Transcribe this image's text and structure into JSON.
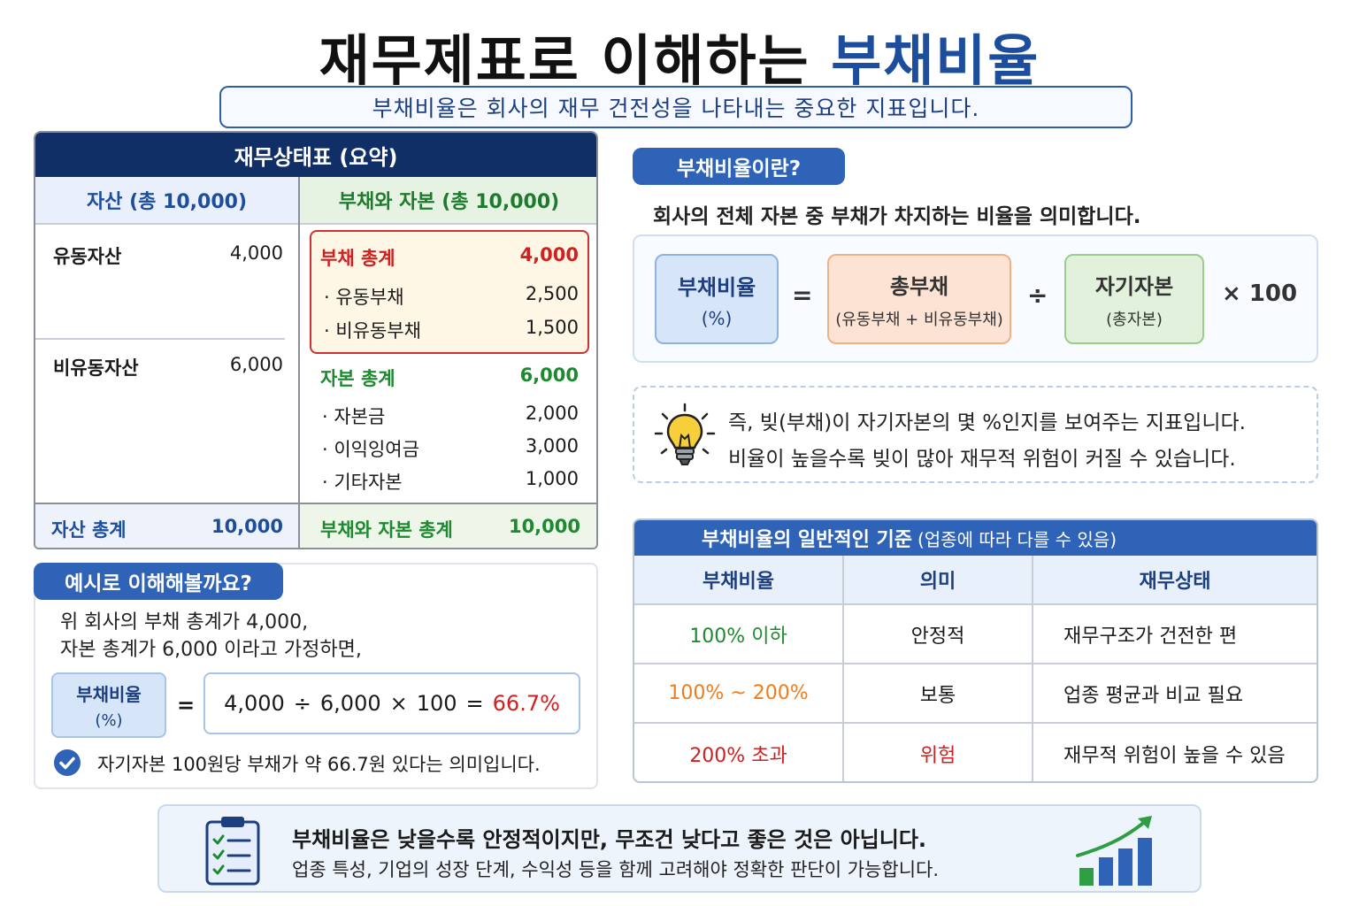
{
  "title": {
    "main": "재무제표로 이해하는",
    "accent": "부채비율"
  },
  "subtitle": "부채비율은 회사의 재무 건전성을 나타내는 중요한 지표입니다.",
  "balance_sheet": {
    "title": "재무상태표 (요약)",
    "asset_header": "자산 (총 10,000)",
    "liab_header": "부채와 자본 (총 10,000)",
    "assets": [
      {
        "label": "유동자산",
        "value": "4,000"
      },
      {
        "label": "비유동자산",
        "value": "6,000"
      }
    ],
    "liabilities": {
      "total_label": "부채 총계",
      "total_value": "4,000",
      "items": [
        {
          "label": "· 유동부채",
          "value": "2,500"
        },
        {
          "label": "· 비유동부채",
          "value": "1,500"
        }
      ]
    },
    "equity": {
      "total_label": "자본 총계",
      "total_value": "6,000",
      "items": [
        {
          "label": "· 자본금",
          "value": "2,000"
        },
        {
          "label": "· 이익잉여금",
          "value": "3,000"
        },
        {
          "label": "· 기타자본",
          "value": "1,000"
        }
      ]
    },
    "asset_total_label": "자산 총계",
    "asset_total_value": "10,000",
    "liab_equity_total_label": "부채와 자본 총계",
    "liab_equity_total_value": "10,000"
  },
  "example": {
    "pill": "예시로 이해해볼까요?",
    "line1": "위 회사의 부채 총계가 4,000,",
    "line2": "자본 총계가 6,000 이라고 가정하면,",
    "ratio_label": "부채비율",
    "ratio_unit": "(%)",
    "equals": "=",
    "calc": {
      "a": "4,000",
      "div": "÷",
      "b": "6,000",
      "mul": "×",
      "c": "100",
      "eq": "=",
      "result": "66.7%"
    },
    "note": "자기자본 100원당 부채가 약 66.7원 있다는 의미입니다."
  },
  "definition": {
    "pill": "부채비율이란?",
    "text": "회사의 전체 자본 중 부채가 차지하는 비율을 의미합니다."
  },
  "formula": {
    "ratio": "부채비율",
    "ratio_unit": "(%)",
    "eq": "=",
    "debt": "총부채",
    "debt_sub": "(유동부채 + 비유동부채)",
    "div": "÷",
    "equity": "자기자본",
    "equity_sub": "(총자본)",
    "mul": "× 100"
  },
  "tip": {
    "icon": "lightbulb-icon",
    "line1": "즉, 빚(부채)이 자기자본의 몇 %인지를 보여주는 지표입니다.",
    "line2": "비율이 높을수록 빚이 많아 재무적 위험이 커질 수 있습니다."
  },
  "criteria": {
    "title": "부채비율의 일반적인 기준",
    "title_sub": "(업종에 따라 다를 수 있음)",
    "columns": [
      "부채비율",
      "의미",
      "재무상태"
    ],
    "rows": [
      {
        "ratio": "100% 이하",
        "meaning": "안정적",
        "status": "재무구조가 건전한 편",
        "color": "#1e8a30"
      },
      {
        "ratio": "100% ~ 200%",
        "meaning": "보통",
        "status": "업종 평균과 비교 필요",
        "color": "#f07c1c"
      },
      {
        "ratio": "200% 초과",
        "meaning": "위험",
        "status": "재무적 위험이 높을 수 있음",
        "color": "#d02020"
      }
    ]
  },
  "bottom": {
    "line1": "부채비율은 낮을수록 안정적이지만, 무조건 낮다고 좋은 것은 아닙니다.",
    "line2": "업종 특성, 기업의 성장 단계, 수익성 등을 함께 고려해야 정확한 판단이 가능합니다.",
    "left_icon": "clipboard-checklist-icon",
    "right_icon": "growth-chart-icon"
  },
  "colors": {
    "navy": "#0f2f66",
    "blue": "#2f63b8",
    "green": "#1e8a30",
    "red": "#d02020",
    "orange": "#f07c1c"
  }
}
